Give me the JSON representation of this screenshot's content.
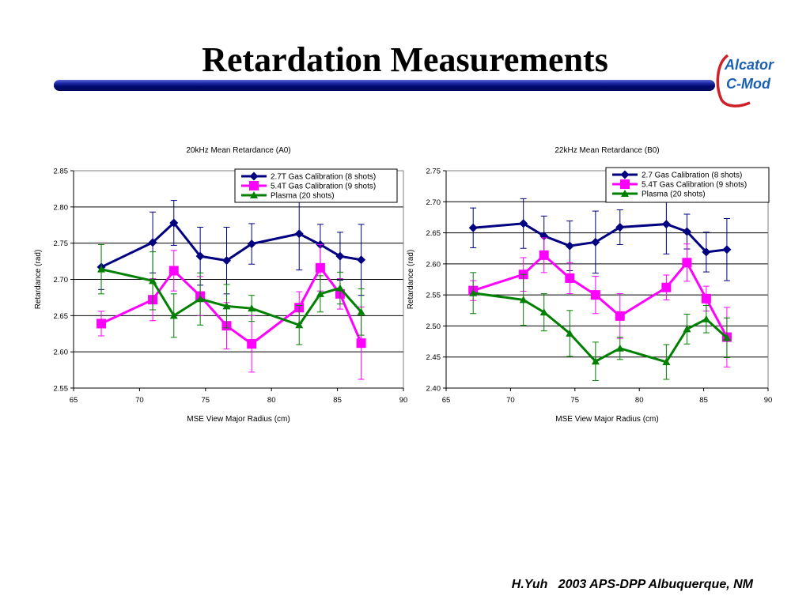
{
  "slide": {
    "title": "Retardation Measurements",
    "footer": "H.Yuh   2003 APS-DPP Albuquerque, NM",
    "logo": {
      "line1": "Alcator",
      "line2": "C-Mod",
      "color": "#1a5fb4",
      "swoosh_color": "#d0202a"
    }
  },
  "chart_data": [
    {
      "type": "line",
      "title": "20kHz Mean Retardance (A0)",
      "xlabel": "MSE View Major Radius (cm)",
      "ylabel": "Retardance (rad)",
      "xlim": [
        65,
        90
      ],
      "ylim": [
        2.55,
        2.85
      ],
      "xticks": [
        65,
        70,
        75,
        80,
        85,
        90
      ],
      "yticks": [
        2.55,
        2.6,
        2.65,
        2.7,
        2.75,
        2.8,
        2.85
      ],
      "ytick_decimals": 2,
      "grid": "horizontal",
      "legend": "top-right",
      "series": [
        {
          "name": "2.7T Gas Calibration (8 shots)",
          "color": "#000080",
          "marker": "diamond",
          "x": [
            67.1,
            71,
            72.6,
            74.6,
            76.6,
            78.5,
            82.1,
            83.7,
            85.2,
            86.8
          ],
          "y": [
            2.717,
            2.751,
            2.778,
            2.732,
            2.726,
            2.749,
            2.763,
            2.748,
            2.732,
            2.727
          ],
          "err": [
            0.031,
            0.042,
            0.031,
            0.04,
            0.046,
            0.028,
            0.05,
            0.028,
            0.033,
            0.049
          ]
        },
        {
          "name": "5.4T Gas Calibration (9 shots)",
          "color": "#ff00ff",
          "marker": "square",
          "x": [
            67.1,
            71,
            72.6,
            74.6,
            76.6,
            78.5,
            82.1,
            83.7,
            85.2,
            86.8
          ],
          "y": [
            2.639,
            2.672,
            2.712,
            2.677,
            2.636,
            2.611,
            2.661,
            2.716,
            2.68,
            2.612
          ],
          "err": [
            0.017,
            0.029,
            0.028,
            0.027,
            0.032,
            0.039,
            0.022,
            0.032,
            0.021,
            0.05
          ]
        },
        {
          "name": "Plasma (20 shots)",
          "color": "#008000",
          "marker": "triangle",
          "x": [
            67.1,
            71,
            72.6,
            74.6,
            76.6,
            78.5,
            82.1,
            83.7,
            85.2,
            86.8
          ],
          "y": [
            2.714,
            2.698,
            2.65,
            2.673,
            2.663,
            2.66,
            2.637,
            2.68,
            2.688,
            2.655
          ],
          "err": [
            0.034,
            0.04,
            0.03,
            0.036,
            0.03,
            0.018,
            0.027,
            0.025,
            0.022,
            0.032
          ]
        }
      ]
    },
    {
      "type": "line",
      "title": "22kHz Mean Retardance (B0)",
      "xlabel": "MSE View Major Radius (cm)",
      "ylabel": "Retardance (rad)",
      "xlim": [
        65,
        90
      ],
      "ylim": [
        2.4,
        2.75
      ],
      "xticks": [
        65,
        70,
        75,
        80,
        85,
        90
      ],
      "yticks": [
        2.4,
        2.45,
        2.5,
        2.55,
        2.6,
        2.65,
        2.7,
        2.75
      ],
      "ytick_decimals": 2,
      "grid": "horizontal",
      "legend": "top-right",
      "series": [
        {
          "name": "2.7 Gas Calibration (8 shots)",
          "color": "#000080",
          "marker": "diamond",
          "x": [
            67.1,
            71,
            72.6,
            74.6,
            76.6,
            78.5,
            82.1,
            83.7,
            85.2,
            86.8
          ],
          "y": [
            2.658,
            2.665,
            2.645,
            2.629,
            2.635,
            2.659,
            2.664,
            2.652,
            2.619,
            2.623
          ],
          "err": [
            0.032,
            0.04,
            0.032,
            0.04,
            0.05,
            0.028,
            0.048,
            0.028,
            0.032,
            0.05
          ]
        },
        {
          "name": "5.4T Gas Calibration (9 shots)",
          "color": "#ff00ff",
          "marker": "square",
          "x": [
            67.1,
            71,
            72.6,
            74.6,
            76.6,
            78.5,
            82.1,
            83.7,
            85.2,
            86.8
          ],
          "y": [
            2.557,
            2.583,
            2.614,
            2.577,
            2.55,
            2.516,
            2.562,
            2.602,
            2.544,
            2.482
          ],
          "err": [
            0.016,
            0.027,
            0.028,
            0.025,
            0.03,
            0.036,
            0.02,
            0.03,
            0.02,
            0.048
          ]
        },
        {
          "name": "Plasma (20 shots)",
          "color": "#008000",
          "marker": "triangle",
          "x": [
            67.1,
            71,
            72.6,
            74.6,
            76.6,
            78.5,
            82.1,
            83.7,
            85.2,
            86.8
          ],
          "y": [
            2.553,
            2.542,
            2.522,
            2.488,
            2.443,
            2.464,
            2.442,
            2.495,
            2.511,
            2.481
          ],
          "err": [
            0.033,
            0.041,
            0.03,
            0.037,
            0.031,
            0.018,
            0.028,
            0.024,
            0.022,
            0.032
          ]
        }
      ]
    }
  ]
}
